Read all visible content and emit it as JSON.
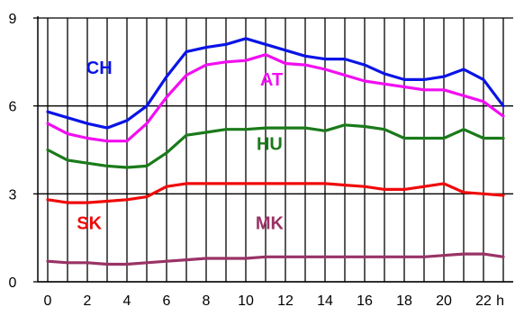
{
  "chart_data": {
    "type": "line",
    "title": "",
    "xlabel": "",
    "ylabel": "",
    "x_unit_label": "h",
    "x": [
      0,
      1,
      2,
      3,
      4,
      5,
      6,
      7,
      8,
      9,
      10,
      11,
      12,
      13,
      14,
      15,
      16,
      17,
      18,
      19,
      20,
      21,
      22,
      23
    ],
    "x_ticks": [
      0,
      2,
      4,
      6,
      8,
      10,
      12,
      14,
      16,
      18,
      20,
      22
    ],
    "x_tick_labels": [
      "0",
      "2",
      "4",
      "6",
      "8",
      "10",
      "12",
      "14",
      "16",
      "18",
      "20",
      "22"
    ],
    "xlim": [
      -0.5,
      23.5
    ],
    "ylim": [
      0,
      9
    ],
    "y_ticks": [
      0,
      3,
      6,
      9
    ],
    "y_tick_labels": [
      "0",
      "3",
      "6",
      "9"
    ],
    "grid": "horizontal at 3, 6, 9; vertical at each hour",
    "series": [
      {
        "name": "CH",
        "color": "#0a14e6",
        "values": [
          5.8,
          5.6,
          5.4,
          5.25,
          5.5,
          6.0,
          7.0,
          7.85,
          8.0,
          8.1,
          8.3,
          8.1,
          7.9,
          7.7,
          7.6,
          7.6,
          7.4,
          7.1,
          6.9,
          6.9,
          7.0,
          7.25,
          6.9,
          6.0
        ]
      },
      {
        "name": "AT",
        "color": "#f20df2",
        "values": [
          5.4,
          5.05,
          4.9,
          4.8,
          4.8,
          5.4,
          6.3,
          7.05,
          7.4,
          7.5,
          7.55,
          7.75,
          7.45,
          7.4,
          7.25,
          7.05,
          6.85,
          6.75,
          6.65,
          6.55,
          6.55,
          6.35,
          6.15,
          5.65
        ]
      },
      {
        "name": "HU",
        "color": "#1a7a1a",
        "values": [
          4.5,
          4.15,
          4.05,
          3.95,
          3.9,
          3.95,
          4.4,
          5.0,
          5.1,
          5.2,
          5.2,
          5.25,
          5.25,
          5.25,
          5.15,
          5.35,
          5.3,
          5.2,
          4.9,
          4.9,
          4.9,
          5.2,
          4.9,
          4.9
        ]
      },
      {
        "name": "SK",
        "color": "#f00a0a",
        "values": [
          2.8,
          2.7,
          2.7,
          2.75,
          2.8,
          2.9,
          3.25,
          3.35,
          3.35,
          3.35,
          3.35,
          3.35,
          3.35,
          3.35,
          3.35,
          3.3,
          3.25,
          3.15,
          3.15,
          3.25,
          3.35,
          3.05,
          3.0,
          2.95
        ]
      },
      {
        "name": "MK",
        "color": "#993366",
        "values": [
          0.7,
          0.65,
          0.65,
          0.6,
          0.6,
          0.65,
          0.7,
          0.75,
          0.8,
          0.8,
          0.8,
          0.85,
          0.85,
          0.85,
          0.85,
          0.85,
          0.85,
          0.85,
          0.85,
          0.85,
          0.9,
          0.95,
          0.95,
          0.85
        ]
      }
    ],
    "labels": [
      {
        "text": "CH",
        "series": "CH",
        "x": 2.6,
        "y": 7.1
      },
      {
        "text": "AT",
        "series": "AT",
        "x": 11.3,
        "y": 6.7
      },
      {
        "text": "HU",
        "series": "HU",
        "x": 11.2,
        "y": 4.5
      },
      {
        "text": "SK",
        "series": "SK",
        "x": 2.1,
        "y": 1.8
      },
      {
        "text": "MK",
        "series": "MK",
        "x": 11.2,
        "y": 1.8
      }
    ]
  }
}
